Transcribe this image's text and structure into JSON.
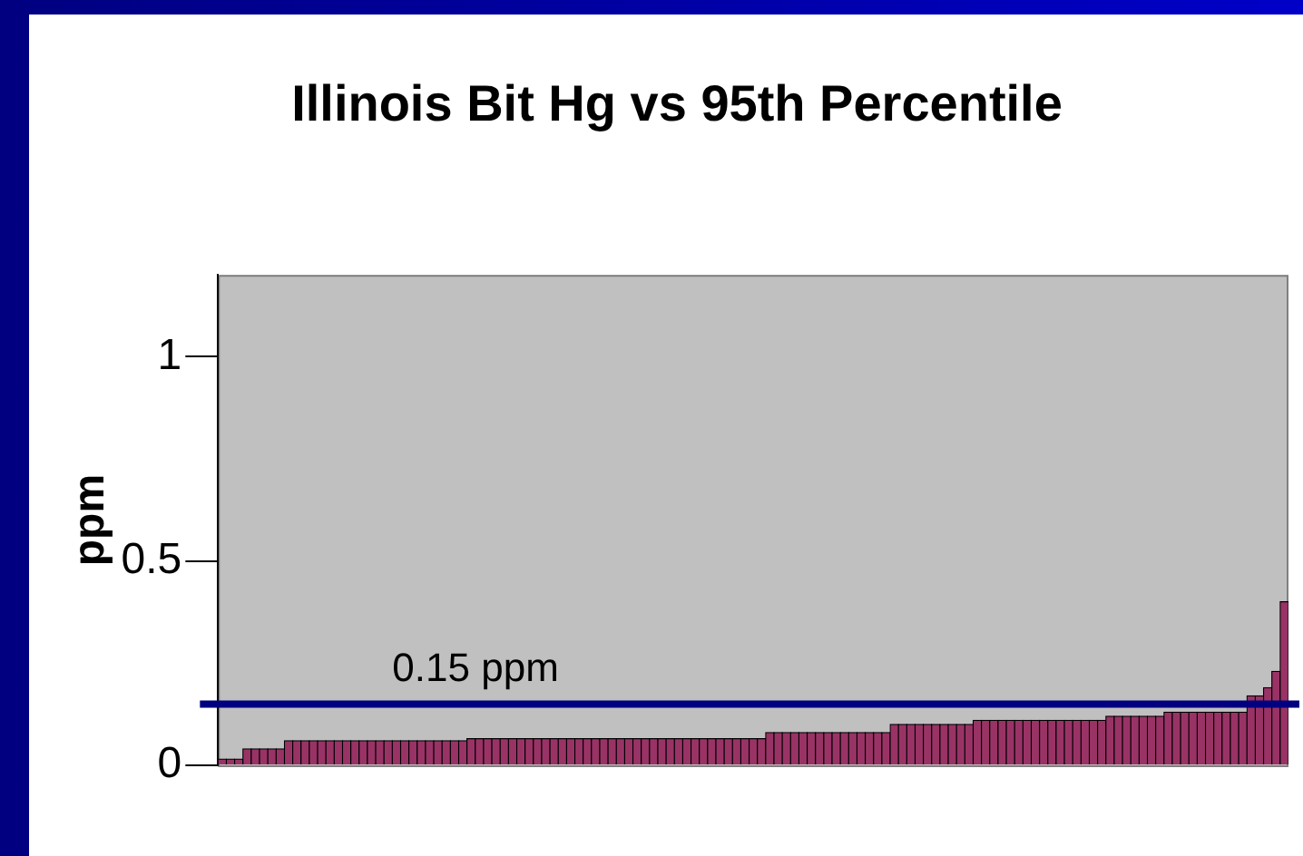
{
  "chart_data": {
    "type": "bar",
    "title": "Illinois Bit Hg vs 95th Percentile",
    "ylabel": "ppm",
    "categories": [
      null,
      null,
      null,
      null,
      null,
      null,
      null,
      null,
      null,
      null,
      null,
      null,
      null,
      null,
      null,
      null,
      null,
      null,
      null,
      null,
      null,
      null,
      null,
      null,
      null,
      null,
      null,
      null,
      null,
      null,
      null,
      null,
      null,
      null,
      null,
      null,
      null,
      null,
      null,
      null,
      null,
      null,
      null,
      null,
      null,
      null,
      null,
      null,
      null,
      null,
      null,
      null,
      null,
      null,
      null,
      null,
      null,
      null,
      null,
      null,
      null,
      null,
      null,
      null,
      null,
      null,
      null,
      null,
      null,
      null,
      null,
      null,
      null,
      null,
      null,
      null,
      null,
      null,
      null,
      null,
      null,
      null,
      null,
      null,
      null,
      null,
      null,
      null,
      null,
      null,
      null,
      null,
      null,
      null,
      null,
      null,
      null,
      null,
      null,
      null,
      null,
      null,
      null,
      null,
      null,
      null,
      null,
      null,
      null,
      null,
      null,
      null,
      null,
      null,
      null,
      null,
      null,
      null,
      null,
      null,
      null,
      null,
      null,
      null,
      null,
      null,
      null,
      null,
      null
    ],
    "values": [
      0.015,
      0.015,
      0.015,
      0.04,
      0.04,
      0.04,
      0.04,
      0.04,
      0.06,
      0.06,
      0.06,
      0.06,
      0.06,
      0.06,
      0.06,
      0.06,
      0.06,
      0.06,
      0.06,
      0.06,
      0.06,
      0.06,
      0.06,
      0.06,
      0.06,
      0.06,
      0.06,
      0.06,
      0.06,
      0.06,
      0.065,
      0.065,
      0.065,
      0.065,
      0.065,
      0.065,
      0.065,
      0.065,
      0.065,
      0.065,
      0.065,
      0.065,
      0.065,
      0.065,
      0.065,
      0.065,
      0.065,
      0.065,
      0.065,
      0.065,
      0.065,
      0.065,
      0.065,
      0.065,
      0.065,
      0.065,
      0.065,
      0.065,
      0.065,
      0.065,
      0.065,
      0.065,
      0.065,
      0.065,
      0.065,
      0.065,
      0.08,
      0.08,
      0.08,
      0.08,
      0.08,
      0.08,
      0.08,
      0.08,
      0.08,
      0.08,
      0.08,
      0.08,
      0.08,
      0.08,
      0.08,
      0.1,
      0.1,
      0.1,
      0.1,
      0.1,
      0.1,
      0.1,
      0.1,
      0.1,
      0.1,
      0.11,
      0.11,
      0.11,
      0.11,
      0.11,
      0.11,
      0.11,
      0.11,
      0.11,
      0.11,
      0.11,
      0.11,
      0.11,
      0.11,
      0.11,
      0.11,
      0.12,
      0.12,
      0.12,
      0.12,
      0.12,
      0.12,
      0.12,
      0.13,
      0.13,
      0.13,
      0.13,
      0.13,
      0.13,
      0.13,
      0.13,
      0.13,
      0.13,
      0.17,
      0.17,
      0.19,
      0.23,
      0.4
    ],
    "color": "#993366",
    "ylim": [
      0,
      1.2
    ],
    "yticks": [
      0,
      0.5,
      1
    ],
    "tick_labels": "y",
    "grid": false,
    "legend": false,
    "ref_lines": [
      {
        "axis": "y",
        "value": 0.15,
        "label": "0.15 ppm",
        "color": "#000080"
      }
    ]
  }
}
